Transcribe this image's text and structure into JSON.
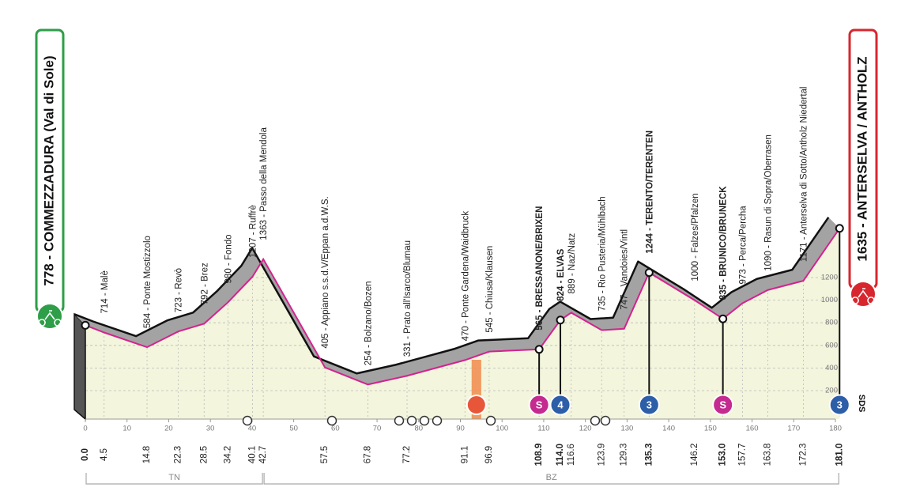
{
  "chart_data": {
    "type": "profile",
    "start_title": "778 - COMMEZZADURA (Val di Sole)",
    "finish_title": "1635 - ANTERSELVA / ANTHOLZ",
    "side_label": "SDS",
    "xlim": [
      0,
      180
    ],
    "xticks": [
      0,
      10,
      20,
      30,
      40,
      50,
      60,
      70,
      80,
      90,
      100,
      110,
      120,
      130,
      140,
      150,
      160,
      170,
      180
    ],
    "ylim": [
      0,
      1200
    ],
    "yticks": [
      200,
      400,
      600,
      800,
      1000,
      1200
    ],
    "line_color": "#d4228f",
    "fill_color": "#f3f5dc",
    "ribbon_color": "#a3a3a3",
    "waypoints": [
      {
        "km": {
          "value": 0,
          "label": "0.0"
        },
        "elevation": 778,
        "bold": true
      },
      {
        "km": 4.5,
        "elevation": 714,
        "label": "714 - Malè"
      },
      {
        "km": 14.8,
        "elevation": 584,
        "label": "584 - Ponte Mostizzolo"
      },
      {
        "km": 22.3,
        "elevation": 723,
        "label": "723 - Revò"
      },
      {
        "km": 28.5,
        "elevation": 792,
        "label": "792 - Brez"
      },
      {
        "km": 34.2,
        "elevation": 980,
        "label": "980 - Fondo"
      },
      {
        "km": 40.1,
        "elevation": 1207,
        "label": "1207 - Ruffrè"
      },
      {
        "km": 42.7,
        "elevation": 1363,
        "label": "1363 - Passo della Mendola"
      },
      {
        "km": 57.5,
        "elevation": 405,
        "label": "405 - Appiano s.s.d.V/Eppan a.d.W.S."
      },
      {
        "km": 67.8,
        "elevation": 254,
        "label": "254 - Bolzano/Bozen"
      },
      {
        "km": 77.2,
        "elevation": 331,
        "label": "331 - Prato all'Isarco/Blumau"
      },
      {
        "km": 91.1,
        "elevation": 470,
        "label": "470 - Ponte Gardena/Waidbruck"
      },
      {
        "km": 96.9,
        "elevation": 545,
        "label": "545 - Chiusa/Klausen"
      },
      {
        "km": 108.9,
        "elevation": 565,
        "label": "565 - BRESSANONE/BRIXEN",
        "bold": true
      },
      {
        "km": {
          "value": 114,
          "label": "114.0"
        },
        "elevation": 824,
        "label": "824 - ELVAS",
        "bold": true
      },
      {
        "km": 116.6,
        "elevation": 889,
        "label": "889 - Naz/Natz"
      },
      {
        "km": 123.9,
        "elevation": 735,
        "label": "735 - Rio Pusteria/Mühlbach"
      },
      {
        "km": 129.3,
        "elevation": 747,
        "label": "747 - Vandoies/Vintl"
      },
      {
        "km": 135.3,
        "elevation": 1244,
        "label": "1244 - TERENTO/TERENTEN",
        "bold": true
      },
      {
        "km": 146.2,
        "elevation": 1000,
        "label": "1000 - Falzes/Pfalzen"
      },
      {
        "km": {
          "value": 153,
          "label": "153.0"
        },
        "elevation": 835,
        "label": "835 - BRUNICO/BRUNECK",
        "bold": true
      },
      {
        "km": 157.7,
        "elevation": 973,
        "label": "973 - Perca/Percha"
      },
      {
        "km": 163.8,
        "elevation": 1090,
        "label": "1090 - Rasun di Sopra/Oberrasen"
      },
      {
        "km": 172.3,
        "elevation": 1171,
        "label": "1171 - Anterselva di Sotto/Antholz Niedertal"
      },
      {
        "km": {
          "value": 181,
          "label": "181.0"
        },
        "elevation": 1635,
        "bold": true
      }
    ],
    "markers": [
      {
        "km": 108.9,
        "label": "S",
        "color": "#c42a8f"
      },
      {
        "km": 114,
        "label": "4",
        "color": "#2d5ea8"
      },
      {
        "km": 135.3,
        "label": "3",
        "color": "#2d5ea8"
      },
      {
        "km": 153,
        "label": "S",
        "color": "#c42a8f"
      },
      {
        "km": 181,
        "label": "3",
        "color": "#2d5ea8"
      }
    ],
    "feed_zone": {
      "from": 92.7,
      "to": 95,
      "color": "#f08a4b"
    },
    "regions": [
      {
        "label": "TN",
        "from": 0,
        "to": 42.7
      },
      {
        "label": "BZ",
        "from": 42.7,
        "to": 181
      }
    ]
  }
}
